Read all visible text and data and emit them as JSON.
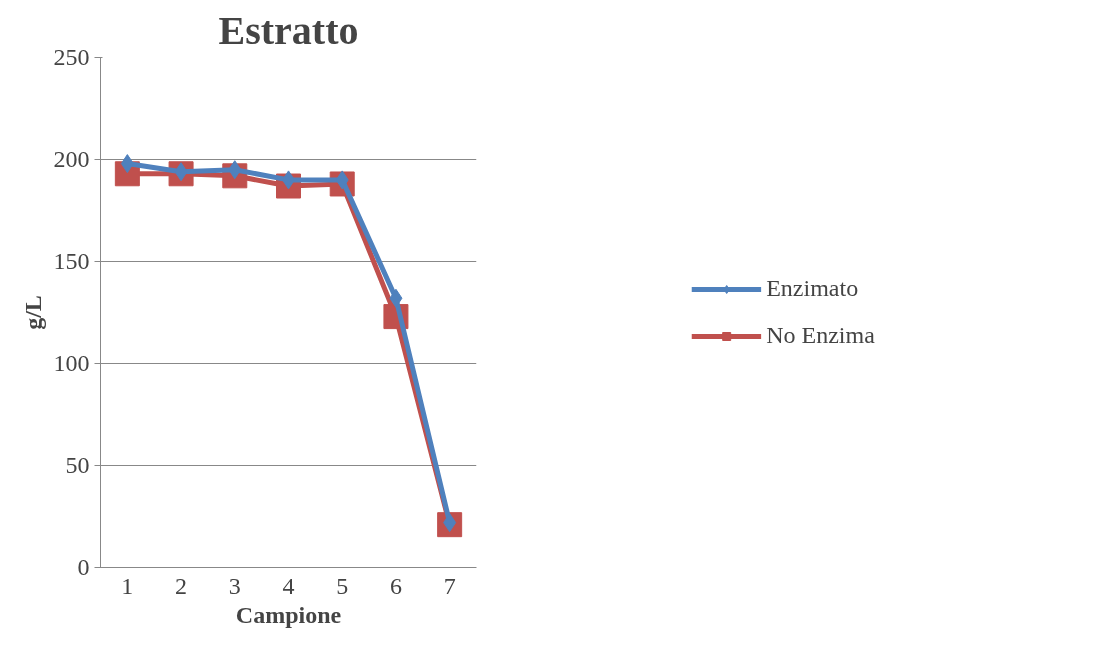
{
  "chart_data": {
    "type": "line",
    "title": "Estratto",
    "xlabel": "Campione",
    "ylabel": "g/L",
    "categories": [
      "1",
      "2",
      "3",
      "4",
      "5",
      "6",
      "7"
    ],
    "series": [
      {
        "name": "Enzimato",
        "color": "#4f81bd",
        "values": [
          198,
          194,
          195,
          190,
          190,
          132,
          22
        ],
        "marker": "diamond"
      },
      {
        "name": "No Enzima",
        "color": "#c0504d",
        "values": [
          193,
          193,
          192,
          187,
          188,
          123,
          21
        ],
        "marker": "square"
      }
    ],
    "ylim": [
      0,
      250
    ],
    "yticks": [
      0,
      50,
      100,
      150,
      200,
      250
    ],
    "grid": "y",
    "legend": "right",
    "line_style": "solid"
  }
}
